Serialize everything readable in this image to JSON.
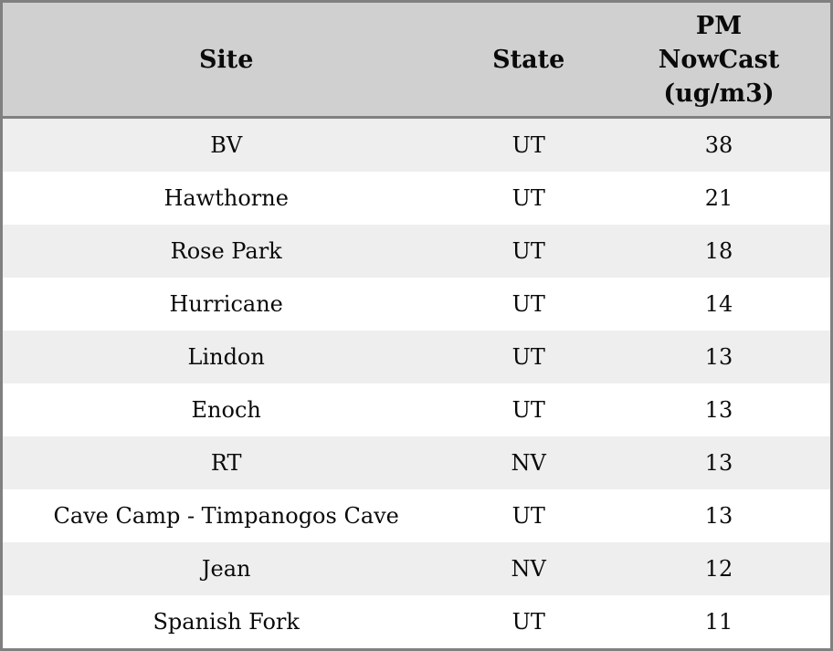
{
  "table": {
    "columns": {
      "site": {
        "label": "Site"
      },
      "state": {
        "label": "State"
      },
      "pm": {
        "label": "PM NowCast (ug/m3)"
      }
    },
    "rows": [
      {
        "site": "BV",
        "state": "UT",
        "pm": "38"
      },
      {
        "site": "Hawthorne",
        "state": "UT",
        "pm": "21"
      },
      {
        "site": "Rose Park",
        "state": "UT",
        "pm": "18"
      },
      {
        "site": "Hurricane",
        "state": "UT",
        "pm": "14"
      },
      {
        "site": "Lindon",
        "state": "UT",
        "pm": "13"
      },
      {
        "site": "Enoch",
        "state": "UT",
        "pm": "13"
      },
      {
        "site": "RT",
        "state": "NV",
        "pm": "13"
      },
      {
        "site": "Cave Camp - Timpanogos Cave",
        "state": "UT",
        "pm": "13"
      },
      {
        "site": "Jean",
        "state": "NV",
        "pm": "12"
      },
      {
        "site": "Spanish Fork",
        "state": "UT",
        "pm": "11"
      }
    ],
    "colors": {
      "header_bg": "#d0d0d0",
      "stripe_bg": "#eeeeee",
      "row_bg": "#ffffff",
      "border": "#808080",
      "text": "#0a0a0a"
    }
  }
}
